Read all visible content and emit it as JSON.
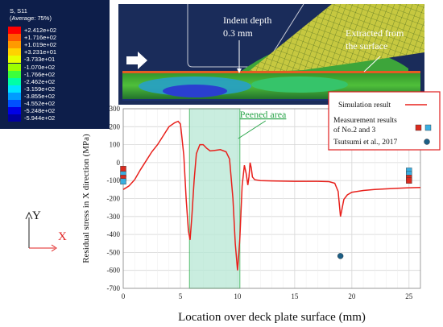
{
  "contour_legend": {
    "variable": "S, S11",
    "averaging": "(Average: 75%)",
    "levels": [
      "+2.412e+02",
      "+1.716e+02",
      "+1.019e+02",
      "+3.231e+01",
      "-3.733e+01",
      "-1.070e+02",
      "-1.766e+02",
      "-2.462e+02",
      "-3.159e+02",
      "-3.855e+02",
      "-4.552e+02",
      "-5.248e+02",
      "-5.944e+02"
    ],
    "level_colors": [
      "#ff0000",
      "#ff5a00",
      "#ff9a00",
      "#ffd200",
      "#e6ff00",
      "#9cff00",
      "#3cff3c",
      "#00ffa6",
      "#00e4ff",
      "#009cff",
      "#0050ff",
      "#0000e6",
      "#0000a0"
    ]
  },
  "fem_annotations": {
    "indent_label_line1": "Indent depth",
    "indent_label_line2": "0.3 mm",
    "extract_label_line1": "Extracted from",
    "extract_label_line2": "the surface"
  },
  "axes_triad": {
    "y_label": "Y",
    "x_label": "X"
  },
  "chart_data": {
    "type": "line",
    "xlabel": "Location over deck plate surface (mm)",
    "ylabel": "Residual stress in X direction (MPa)",
    "xlim": [
      0,
      26
    ],
    "ylim": [
      -700,
      300
    ],
    "xticks": [
      0,
      5,
      10,
      15,
      20,
      25
    ],
    "yticks": [
      -700,
      -600,
      -500,
      -400,
      -300,
      -200,
      -100,
      0,
      100,
      200,
      300
    ],
    "grid": true,
    "peened_area": {
      "label": "Peened area",
      "x_start": 5.8,
      "x_end": 10.2
    },
    "legend": {
      "position": "top-right",
      "items": [
        "Simulation result",
        "Measurement results of No.2 and 3",
        "Tsutsumi et al., 2017"
      ]
    },
    "series": [
      {
        "name": "Simulation result",
        "style": "line",
        "color": "#e8201b",
        "x": [
          0,
          0.5,
          1,
          1.5,
          2,
          2.5,
          3,
          3.5,
          4,
          4.5,
          4.8,
          5.0,
          5.1,
          5.3,
          5.5,
          5.7,
          5.85,
          6.0,
          6.2,
          6.4,
          6.7,
          7.0,
          7.3,
          7.6,
          8.0,
          8.5,
          9.0,
          9.3,
          9.6,
          9.8,
          10.0,
          10.1,
          10.2,
          10.4,
          10.6,
          10.75,
          10.9,
          11.0,
          11.1,
          11.2,
          11.3,
          11.5,
          12,
          13,
          14,
          15,
          16,
          17,
          18,
          18.5,
          18.8,
          19.0,
          19.1,
          19.3,
          19.6,
          20,
          21,
          22,
          23,
          24,
          25,
          26
        ],
        "y": [
          -150,
          -130,
          -95,
          -40,
          10,
          60,
          100,
          150,
          200,
          222,
          230,
          215,
          160,
          40,
          -200,
          -380,
          -430,
          -300,
          -100,
          50,
          100,
          100,
          80,
          65,
          68,
          72,
          60,
          20,
          -200,
          -450,
          -600,
          -520,
          -420,
          -130,
          -15,
          -60,
          -125,
          -80,
          0,
          -30,
          -80,
          -95,
          -100,
          -102,
          -103,
          -104,
          -104,
          -104,
          -106,
          -115,
          -160,
          -300,
          -270,
          -205,
          -180,
          -165,
          -155,
          -150,
          -146,
          -143,
          -140,
          -138
        ]
      },
      {
        "name": "Measurement results of No.2 and 3",
        "style": "markers",
        "points": [
          {
            "x": 0,
            "y": -35,
            "color": "#d92b1f"
          },
          {
            "x": 0,
            "y": -65,
            "color": "#3aaee0"
          },
          {
            "x": 0,
            "y": -85,
            "color": "#d92b1f"
          },
          {
            "x": 0,
            "y": -105,
            "color": "#3aaee0"
          },
          {
            "x": 25,
            "y": -45,
            "color": "#3aaee0"
          },
          {
            "x": 25,
            "y": -65,
            "color": "#3aaee0"
          },
          {
            "x": 25,
            "y": -85,
            "color": "#d92b1f"
          },
          {
            "x": 25,
            "y": -100,
            "color": "#d92b1f"
          }
        ]
      },
      {
        "name": "Tsutsumi et al., 2017",
        "style": "markers",
        "points": [
          {
            "x": 19,
            "y": -520,
            "color": "#1c5f86"
          }
        ]
      }
    ]
  }
}
